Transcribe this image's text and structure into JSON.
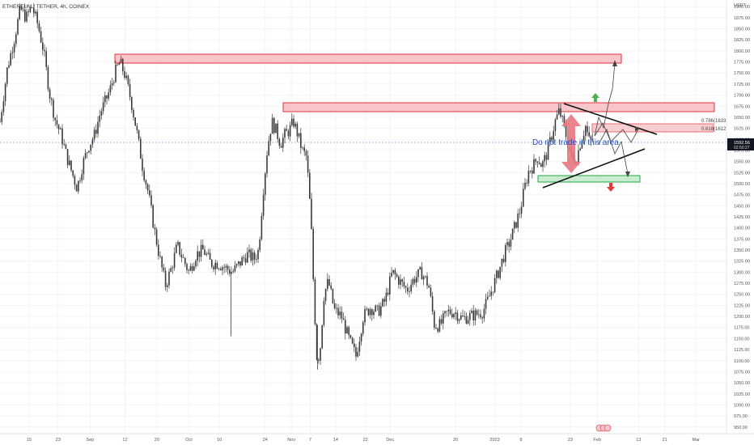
{
  "header": {
    "symbol_line": "ETHEREUM / TETHER, 4h, COINEX"
  },
  "price_axis": {
    "unit": "USDT",
    "current_price": "1592.56",
    "countdown": "02:50:27"
  },
  "annotations": {
    "warning_text": "Do not trade in this area",
    "fib_upper": "0.786(1633.65)",
    "fib_lower": "0.618(1612.67)"
  },
  "colors": {
    "candle": "#3a3a3a",
    "resistance_fill": "#f8c6c9",
    "resistance_border": "#e0323e",
    "support_fill": "#c9ecce",
    "support_border": "#27a544",
    "arrow_up": "#4caf50",
    "arrow_down": "#e53935",
    "text_blue": "#1e4fb5",
    "price_line": "#a8b8f0",
    "price_tag": "#131722"
  },
  "chart_data": {
    "type": "line",
    "title": "ETHEREUM / TETHER, 4h, COINEX",
    "ylabel": "USDT",
    "ylim": [
      935,
      1915
    ],
    "y_ticks": [
      950,
      975,
      1000,
      1025,
      1050,
      1075,
      1100,
      1125,
      1150,
      1175,
      1200,
      1225,
      1250,
      1275,
      1300,
      1325,
      1350,
      1375,
      1400,
      1425,
      1450,
      1475,
      1500,
      1525,
      1550,
      1575,
      1600,
      1625,
      1650,
      1675,
      1700,
      1725,
      1750,
      1775,
      1800,
      1825,
      1850,
      1875,
      1900
    ],
    "x_ticks": [
      {
        "label": "15",
        "t": 0.04
      },
      {
        "label": "23",
        "t": 0.08
      },
      {
        "label": "Sep",
        "t": 0.124
      },
      {
        "label": "12",
        "t": 0.172
      },
      {
        "label": "20",
        "t": 0.216
      },
      {
        "label": "Oct",
        "t": 0.26
      },
      {
        "label": "10",
        "t": 0.302
      },
      {
        "label": "24",
        "t": 0.365
      },
      {
        "label": "Nov",
        "t": 0.401
      },
      {
        "label": "7",
        "t": 0.427
      },
      {
        "label": "14",
        "t": 0.462
      },
      {
        "label": "22",
        "t": 0.503
      },
      {
        "label": "Dec",
        "t": 0.537
      },
      {
        "label": "20",
        "t": 0.627
      },
      {
        "label": "2023",
        "t": 0.681
      },
      {
        "label": "9",
        "t": 0.717
      },
      {
        "label": "23",
        "t": 0.785
      },
      {
        "label": "Feb",
        "t": 0.822
      },
      {
        "label": "13",
        "t": 0.879
      },
      {
        "label": "21",
        "t": 0.915
      },
      {
        "label": "Mar",
        "t": 0.958
      }
    ],
    "series": [
      {
        "values": [
          [
            0.0,
            1640
          ],
          [
            0.01,
            1760
          ],
          [
            0.02,
            1830
          ],
          [
            0.028,
            1895
          ],
          [
            0.036,
            1875
          ],
          [
            0.044,
            1900
          ],
          [
            0.052,
            1860
          ],
          [
            0.06,
            1800
          ],
          [
            0.068,
            1705
          ],
          [
            0.076,
            1645
          ],
          [
            0.084,
            1610
          ],
          [
            0.092,
            1560
          ],
          [
            0.1,
            1520
          ],
          [
            0.106,
            1490
          ],
          [
            0.114,
            1545
          ],
          [
            0.122,
            1585
          ],
          [
            0.13,
            1610
          ],
          [
            0.138,
            1660
          ],
          [
            0.146,
            1690
          ],
          [
            0.152,
            1715
          ],
          [
            0.158,
            1750
          ],
          [
            0.165,
            1775
          ],
          [
            0.172,
            1745
          ],
          [
            0.18,
            1690
          ],
          [
            0.188,
            1620
          ],
          [
            0.196,
            1540
          ],
          [
            0.204,
            1480
          ],
          [
            0.212,
            1400
          ],
          [
            0.22,
            1330
          ],
          [
            0.228,
            1270
          ],
          [
            0.236,
            1310
          ],
          [
            0.244,
            1360
          ],
          [
            0.252,
            1330
          ],
          [
            0.26,
            1300
          ],
          [
            0.27,
            1340
          ],
          [
            0.28,
            1350
          ],
          [
            0.29,
            1320
          ],
          [
            0.3,
            1320
          ],
          [
            0.31,
            1310
          ],
          [
            0.32,
            1300
          ],
          [
            0.33,
            1320
          ],
          [
            0.34,
            1340
          ],
          [
            0.35,
            1330
          ],
          [
            0.356,
            1350
          ],
          [
            0.362,
            1480
          ],
          [
            0.368,
            1580
          ],
          [
            0.374,
            1640
          ],
          [
            0.38,
            1620
          ],
          [
            0.386,
            1590
          ],
          [
            0.392,
            1610
          ],
          [
            0.398,
            1620
          ],
          [
            0.404,
            1640
          ],
          [
            0.41,
            1610
          ],
          [
            0.416,
            1575
          ],
          [
            0.422,
            1560
          ],
          [
            0.428,
            1420
          ],
          [
            0.432,
            1250
          ],
          [
            0.436,
            1110
          ],
          [
            0.44,
            1110
          ],
          [
            0.446,
            1250
          ],
          [
            0.452,
            1280
          ],
          [
            0.46,
            1215
          ],
          [
            0.47,
            1200
          ],
          [
            0.48,
            1150
          ],
          [
            0.49,
            1110
          ],
          [
            0.5,
            1200
          ],
          [
            0.51,
            1220
          ],
          [
            0.52,
            1210
          ],
          [
            0.53,
            1235
          ],
          [
            0.54,
            1300
          ],
          [
            0.55,
            1280
          ],
          [
            0.56,
            1260
          ],
          [
            0.57,
            1285
          ],
          [
            0.58,
            1300
          ],
          [
            0.59,
            1270
          ],
          [
            0.598,
            1180
          ],
          [
            0.606,
            1180
          ],
          [
            0.616,
            1210
          ],
          [
            0.626,
            1210
          ],
          [
            0.636,
            1195
          ],
          [
            0.646,
            1200
          ],
          [
            0.656,
            1205
          ],
          [
            0.664,
            1210
          ],
          [
            0.67,
            1230
          ],
          [
            0.678,
            1265
          ],
          [
            0.686,
            1300
          ],
          [
            0.694,
            1340
          ],
          [
            0.702,
            1370
          ],
          [
            0.71,
            1410
          ],
          [
            0.716,
            1440
          ],
          [
            0.722,
            1490
          ],
          [
            0.728,
            1530
          ],
          [
            0.734,
            1540
          ],
          [
            0.74,
            1560
          ],
          [
            0.746,
            1540
          ],
          [
            0.752,
            1565
          ],
          [
            0.758,
            1600
          ],
          [
            0.764,
            1640
          ],
          [
            0.77,
            1665
          ],
          [
            0.776,
            1630
          ],
          [
            0.782,
            1590
          ],
          [
            0.788,
            1550
          ],
          [
            0.794,
            1560
          ],
          [
            0.8,
            1600
          ],
          [
            0.806,
            1630
          ],
          [
            0.812,
            1590
          ],
          [
            0.818,
            1610
          ]
        ]
      }
    ]
  }
}
